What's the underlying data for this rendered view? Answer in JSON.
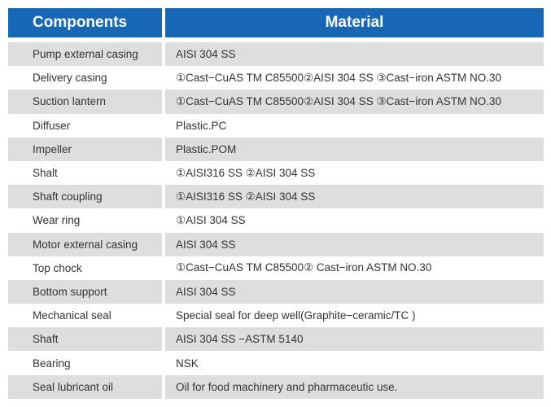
{
  "header": {
    "components": "Components",
    "material": "Material"
  },
  "colors": {
    "header_bg": "#1767b7",
    "stripe": "#dedede"
  },
  "rows": [
    {
      "component": "Pump external casing",
      "material": "AISI 304 SS"
    },
    {
      "component": "Delivery casing",
      "material": "①Cast−CuAS TM C85500②AISI 304 SS ③Cast−iron ASTM NO.30"
    },
    {
      "component": "Suction lantern",
      "material": "①Cast−CuAS TM C85500②AISI 304 SS ③Cast−iron ASTM NO.30"
    },
    {
      "component": "Diffuser",
      "material": "Plastic.PC"
    },
    {
      "component": "Impeller",
      "material": "Plastic.POM"
    },
    {
      "component": "Shalt",
      "material": "①AISI316 SS ②AISI 304 SS"
    },
    {
      "component": "Shaft coupling",
      "material": "①AISI316 SS ②AISI 304 SS"
    },
    {
      "component": "Wear ring",
      "material": "①AISI 304 SS"
    },
    {
      "component": "Motor external casing",
      "material": "AISI 304 SS"
    },
    {
      "component": "Top chock",
      "material": "①Cast−CuAS TM C85500② Cast−iron ASTM NO.30"
    },
    {
      "component": "Bottom support",
      "material": "AISI 304 SS"
    },
    {
      "component": "Mechanical seal",
      "material": "Special seal for deep well(Graphite−ceramic/TC )"
    },
    {
      "component": "Shaft",
      "material": "AISI 304 SS −ASTM 5140"
    },
    {
      "component": "Bearing",
      "material": "NSK"
    },
    {
      "component": "Seal lubricant oil",
      "material": "Oil for food machinery and pharmaceutic use."
    }
  ]
}
